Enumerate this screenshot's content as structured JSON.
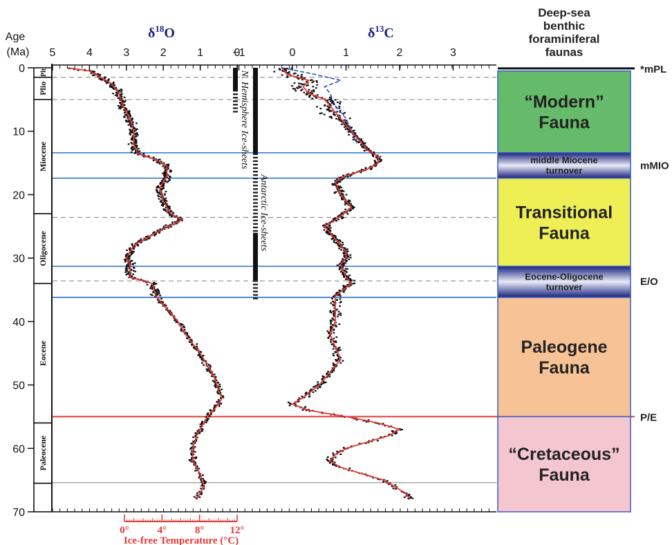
{
  "chart_data": {
    "type": "line",
    "title": "",
    "left_axis": {
      "title_line1": "Age",
      "title_line2": "(Ma)",
      "ticks": [
        0,
        10,
        20,
        30,
        40,
        50,
        60,
        70
      ],
      "ylim": [
        0,
        70
      ]
    },
    "d18O": {
      "label": "δ",
      "label_sup": "18",
      "label_el": "O",
      "ticks": [
        5,
        4,
        3,
        2,
        1,
        0
      ],
      "xlim": [
        5,
        0
      ],
      "color": "#1a237e",
      "smooth_color": "#e53935",
      "smoothed": [
        [
          4.6,
          0
        ],
        [
          4.0,
          0.5
        ],
        [
          3.7,
          1.5
        ],
        [
          3.4,
          2.5
        ],
        [
          3.2,
          4
        ],
        [
          3.1,
          6
        ],
        [
          2.9,
          8
        ],
        [
          2.8,
          10
        ],
        [
          2.8,
          12
        ],
        [
          2.7,
          13.5
        ],
        [
          2.2,
          14.5
        ],
        [
          1.9,
          15.5
        ],
        [
          1.9,
          17
        ],
        [
          2.1,
          19
        ],
        [
          2.0,
          21
        ],
        [
          1.8,
          23
        ],
        [
          1.5,
          24
        ],
        [
          2.2,
          26
        ],
        [
          2.8,
          28
        ],
        [
          3.0,
          30
        ],
        [
          2.9,
          31
        ],
        [
          2.9,
          33
        ],
        [
          2.3,
          34
        ],
        [
          2.2,
          36
        ],
        [
          1.9,
          38
        ],
        [
          1.6,
          40
        ],
        [
          1.4,
          42
        ],
        [
          1.0,
          45
        ],
        [
          0.8,
          47
        ],
        [
          0.6,
          49
        ],
        [
          0.5,
          51
        ],
        [
          0.4,
          52
        ],
        [
          0.5,
          53
        ],
        [
          0.8,
          55
        ],
        [
          0.9,
          56
        ],
        [
          1.1,
          58
        ],
        [
          1.2,
          60
        ],
        [
          1.2,
          62
        ],
        [
          1.0,
          64
        ],
        [
          0.9,
          66
        ],
        [
          1.1,
          68
        ]
      ]
    },
    "d13C": {
      "label": "δ",
      "label_sup": "13",
      "label_el": "C",
      "ticks": [
        -1,
        0,
        1,
        2,
        3
      ],
      "xlim": [
        -1,
        3
      ],
      "color": "#1a237e",
      "smooth_color": "#e53935",
      "smoothed": [
        [
          -0.2,
          0
        ],
        [
          -0.1,
          1
        ],
        [
          0.3,
          2
        ],
        [
          0.2,
          3
        ],
        [
          0.3,
          4
        ],
        [
          0.6,
          5
        ],
        [
          0.7,
          6
        ],
        [
          0.8,
          7
        ],
        [
          0.9,
          8
        ],
        [
          1.0,
          9
        ],
        [
          1.1,
          10
        ],
        [
          1.2,
          11
        ],
        [
          1.3,
          12
        ],
        [
          1.4,
          13
        ],
        [
          1.6,
          14
        ],
        [
          1.6,
          15
        ],
        [
          1.4,
          16
        ],
        [
          1.0,
          17
        ],
        [
          0.8,
          18
        ],
        [
          0.9,
          20
        ],
        [
          1.1,
          22
        ],
        [
          0.8,
          24
        ],
        [
          0.6,
          25
        ],
        [
          0.8,
          27
        ],
        [
          1.0,
          29
        ],
        [
          1.0,
          30
        ],
        [
          0.9,
          31
        ],
        [
          1.0,
          33
        ],
        [
          1.1,
          34
        ],
        [
          0.8,
          36
        ],
        [
          0.8,
          38
        ],
        [
          0.8,
          40
        ],
        [
          0.7,
          42
        ],
        [
          0.8,
          44
        ],
        [
          0.9,
          46
        ],
        [
          0.7,
          48
        ],
        [
          0.5,
          50
        ],
        [
          0.2,
          52
        ],
        [
          0.0,
          53
        ],
        [
          0.3,
          54
        ],
        [
          1.0,
          55
        ],
        [
          1.6,
          56
        ],
        [
          2.0,
          57
        ],
        [
          1.8,
          58
        ],
        [
          1.4,
          59
        ],
        [
          1.0,
          60
        ],
        [
          0.8,
          61
        ],
        [
          0.7,
          62
        ],
        [
          0.9,
          63
        ],
        [
          1.3,
          64
        ],
        [
          1.7,
          65
        ],
        [
          2.1,
          67
        ],
        [
          2.2,
          68
        ]
      ],
      "extra_series": {
        "color": "#1e3fd0",
        "points": [
          [
            -0.2,
            0
          ],
          [
            0.4,
            1
          ],
          [
            0.9,
            2
          ],
          [
            0.6,
            3
          ],
          [
            0.7,
            4
          ],
          [
            0.8,
            6
          ],
          [
            1.0,
            8
          ],
          [
            1.1,
            10
          ],
          [
            1.2,
            12
          ]
        ]
      }
    },
    "temperature_axis": {
      "title": "Ice-free Temperature (°C)",
      "ticks": [
        "0°",
        "4°",
        "8°",
        "12°"
      ],
      "color": "#e53935"
    },
    "ice_sheets": {
      "northern_label": "N. Hemisphere Ice-sheets",
      "antarctic_label": "Antarctic Ice-sheets",
      "northern_solid": [
        0,
        3.5
      ],
      "northern_dashed": [
        3.5,
        7
      ],
      "antarctic_solid": [
        0,
        13.5
      ],
      "antarctic_dashed": [
        13.5,
        26
      ],
      "antarctic_solid2": [
        26,
        33.5
      ],
      "antarctic_dashed2": [
        33.5,
        36.5
      ]
    },
    "epochs": [
      {
        "name": "Plt",
        "start": 0,
        "end": 1.5
      },
      {
        "name": "Plio",
        "start": 1.5,
        "end": 5
      },
      {
        "name": "Miocene",
        "start": 5,
        "end": 23
      },
      {
        "name": "Oligocene",
        "start": 23,
        "end": 34
      },
      {
        "name": "Eocene",
        "start": 34,
        "end": 56
      },
      {
        "name": "Paleocene",
        "start": 56,
        "end": 65.5
      }
    ],
    "event_lines": [
      {
        "age": 13.4,
        "color": "#1565c0"
      },
      {
        "age": 17.4,
        "color": "#1565c0"
      },
      {
        "age": 31.3,
        "color": "#1565c0"
      },
      {
        "age": 36.2,
        "color": "#1565c0"
      },
      {
        "age": 55.0,
        "color": "#e53935"
      },
      {
        "age": 65.4,
        "color": "#9e9e9e"
      }
    ],
    "dashed_lines": [
      1.5,
      5.0,
      23.6,
      33.6
    ],
    "fauna_column": {
      "title": [
        "Deep-sea",
        "benthic",
        "foraminiferal",
        "faunas"
      ],
      "blocks": [
        {
          "label": [
            "“Modern”",
            "Fauna"
          ],
          "start": 0.5,
          "end": 13.4,
          "color": "#66bb6a",
          "type": "fauna"
        },
        {
          "label": [
            "middle Miocene",
            "turnover"
          ],
          "start": 13.4,
          "end": 17.4,
          "color": "#3949ab",
          "type": "turnover"
        },
        {
          "label": [
            "Transitional",
            "Fauna"
          ],
          "start": 17.4,
          "end": 31.3,
          "color": "#eeee55",
          "type": "fauna"
        },
        {
          "label": [
            "Eocene-Oligocene",
            "turnover"
          ],
          "start": 31.3,
          "end": 36.2,
          "color": "#3949ab",
          "type": "turnover"
        },
        {
          "label": [
            "Paleogene",
            "Fauna"
          ],
          "start": 36.2,
          "end": 55.0,
          "color": "#f7c396",
          "type": "fauna"
        },
        {
          "label": [
            "“Cretaceous”",
            "Fauna"
          ],
          "start": 55.0,
          "end": 70.0,
          "color": "#f4c6cf",
          "type": "fauna"
        }
      ],
      "event_labels": [
        {
          "text": "*mPL",
          "age": 0.1
        },
        {
          "text": "mMIO",
          "age": 15.3
        },
        {
          "text": "E/O",
          "age": 33.6
        },
        {
          "text": "P/E",
          "age": 55.0
        }
      ]
    }
  }
}
